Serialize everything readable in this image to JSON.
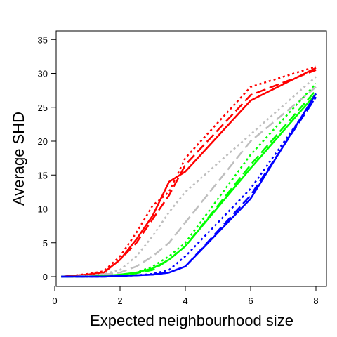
{
  "chart_data": {
    "type": "line",
    "xlabel": "Expected neighbourhood size",
    "ylabel": "Average SHD",
    "xlim": [
      0,
      8
    ],
    "ylim": [
      0,
      35
    ],
    "x_ticks": [
      "0",
      "2",
      "4",
      "6",
      "8"
    ],
    "y_ticks": [
      "0",
      "5",
      "10",
      "15",
      "20",
      "25",
      "30",
      "35"
    ],
    "grid": false,
    "legend": "none",
    "x": [
      0.2,
      0.5,
      1,
      1.5,
      2,
      2.5,
      3,
      3.5,
      4,
      6,
      8
    ],
    "series": [
      {
        "color": "#ff0000",
        "style": "solid",
        "values": [
          0,
          0.1,
          0.3,
          0.6,
          2.5,
          5.5,
          9.0,
          14.0,
          15.5,
          26.0,
          30.8
        ]
      },
      {
        "color": "#ff0000",
        "style": "dashed",
        "values": [
          0,
          0.1,
          0.3,
          0.6,
          2.5,
          5.0,
          8.5,
          12.0,
          16.5,
          26.8,
          30.5
        ]
      },
      {
        "color": "#ff0000",
        "style": "dotted",
        "values": [
          0,
          0.1,
          0.4,
          0.8,
          3.0,
          6.5,
          10.5,
          12.5,
          17.5,
          28.0,
          31.0
        ]
      },
      {
        "color": "#bebebe",
        "style": "dashed",
        "values": [
          0,
          0,
          0.1,
          0.3,
          0.6,
          1.5,
          3.0,
          5.0,
          8.0,
          20.0,
          28.0
        ]
      },
      {
        "color": "#bebebe",
        "style": "dotted",
        "values": [
          0,
          0,
          0.1,
          0.4,
          1.0,
          3.0,
          6.0,
          9.5,
          12.5,
          21.0,
          29.5
        ]
      },
      {
        "color": "#00ff00",
        "style": "solid",
        "values": [
          0,
          0,
          0,
          0.1,
          0.3,
          0.6,
          1.2,
          2.5,
          4.5,
          16.0,
          27.0
        ]
      },
      {
        "color": "#00ff00",
        "style": "dashed",
        "values": [
          0,
          0,
          0,
          0.1,
          0.2,
          0.5,
          1.0,
          2.5,
          4.5,
          16.5,
          27.5
        ]
      },
      {
        "color": "#00ff00",
        "style": "dotted",
        "values": [
          0,
          0,
          0,
          0.1,
          0.2,
          0.6,
          1.5,
          3.0,
          5.0,
          18.0,
          28.5
        ]
      },
      {
        "color": "#0000ff",
        "style": "solid",
        "values": [
          0,
          0,
          0,
          0,
          0.1,
          0.2,
          0.3,
          0.6,
          1.5,
          11.5,
          27.0
        ]
      },
      {
        "color": "#0000ff",
        "style": "dashed",
        "values": [
          0,
          0,
          0,
          0,
          0.1,
          0.2,
          0.3,
          0.6,
          1.5,
          12.0,
          26.5
        ]
      },
      {
        "color": "#0000ff",
        "style": "dotted",
        "values": [
          0,
          0,
          0,
          0,
          0.1,
          0.2,
          0.4,
          1.0,
          3.0,
          13.0,
          26.5
        ]
      }
    ]
  }
}
